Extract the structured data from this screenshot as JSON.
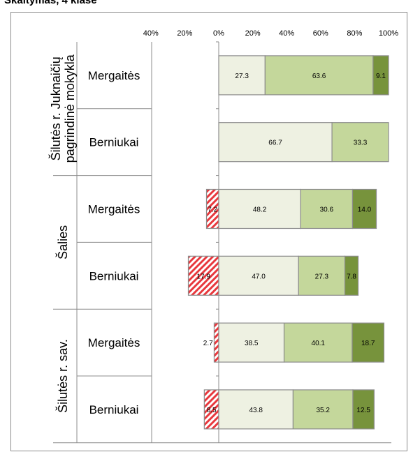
{
  "title": "Skaitymas, 4 klasė",
  "colors": {
    "negative_hatch": "#e8383d",
    "level1": "#eef1e2",
    "level2": "#c4d79b",
    "level3": "#77933c",
    "border": "#8c8c8c"
  },
  "chart_data": {
    "type": "bar",
    "orientation": "horizontal",
    "stacked": true,
    "x_ticks": [
      "40%",
      "20%",
      "0%",
      "20%",
      "40%",
      "60%",
      "80%",
      "100%"
    ],
    "xlim": [
      -40,
      100
    ],
    "groups": [
      {
        "label": "Šilutės r. Juknaičių pagrindinė mokykla",
        "label_lines": [
          "Šilutės r. Juknaičių",
          "pagrindinė mokykla"
        ],
        "rows": [
          {
            "label": "Mergaitės",
            "negative": null,
            "values": [
              27.3,
              63.6,
              9.1
            ]
          },
          {
            "label": "Berniukai",
            "negative": null,
            "values": [
              66.7,
              33.3,
              null
            ]
          }
        ]
      },
      {
        "label": "Šalies",
        "label_lines": [
          "Šalies"
        ],
        "rows": [
          {
            "label": "Mergaitės",
            "negative": 7.2,
            "values": [
              48.2,
              30.6,
              14.0
            ]
          },
          {
            "label": "Berniukai",
            "negative": 17.9,
            "values": [
              47.0,
              27.3,
              7.8
            ]
          }
        ]
      },
      {
        "label": "Šilutės r. sav.",
        "label_lines": [
          "Šilutės r. sav."
        ],
        "rows": [
          {
            "label": "Mergaitės",
            "negative": 2.7,
            "values": [
              38.5,
              40.1,
              18.7
            ]
          },
          {
            "label": "Berniukai",
            "negative": 8.5,
            "values": [
              43.8,
              35.2,
              12.5
            ]
          }
        ]
      }
    ]
  }
}
